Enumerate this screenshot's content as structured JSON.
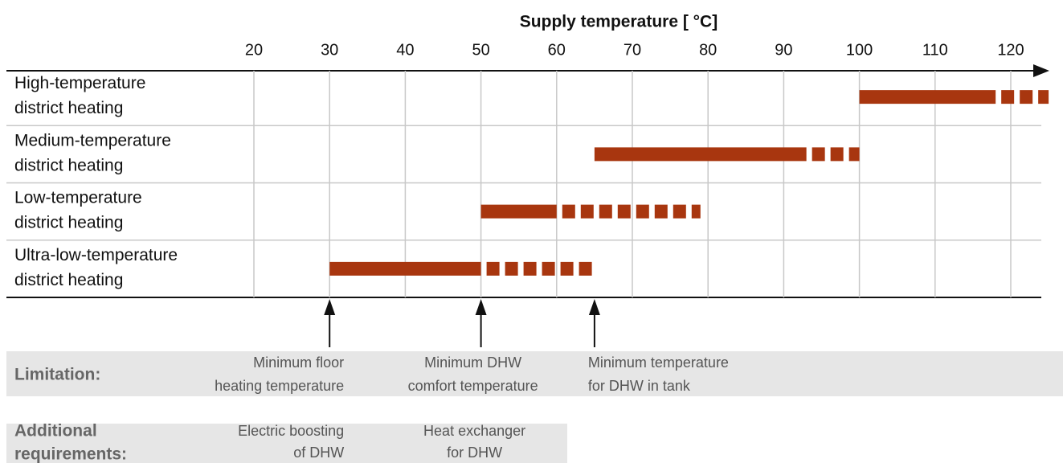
{
  "chart_data": {
    "type": "range",
    "title": "Supply temperature [ °C]",
    "xlim": [
      20,
      120
    ],
    "xticks": [
      20,
      30,
      40,
      50,
      60,
      70,
      80,
      90,
      100,
      110,
      120
    ],
    "grid": true,
    "color": "#a8360f",
    "categories": [
      [
        "High-temperature",
        "district heating"
      ],
      [
        "Medium-temperature",
        "district heating"
      ],
      [
        "Low-temperature",
        "district heating"
      ],
      [
        "Ultra-low-temperature",
        "district heating"
      ]
    ],
    "ranges": [
      {
        "solid": [
          100,
          118
        ],
        "dashed": [
          118,
          125
        ]
      },
      {
        "solid": [
          65,
          93
        ],
        "dashed": [
          93,
          100
        ]
      },
      {
        "solid": [
          50,
          60
        ],
        "dashed": [
          60,
          79
        ]
      },
      {
        "solid": [
          30,
          50
        ],
        "dashed": [
          50,
          65
        ]
      }
    ],
    "limitation_label": "Limitation:",
    "limitations": [
      {
        "x": 30,
        "label": [
          "Minimum floor",
          "heating temperature"
        ]
      },
      {
        "x": 50,
        "label": [
          "Minimum DHW",
          "comfort temperature"
        ]
      },
      {
        "x": 65,
        "label": [
          "Minimum temperature",
          "for DHW in tank"
        ]
      }
    ],
    "requirements_label": [
      "Additional",
      "requirements:"
    ],
    "requirements": [
      {
        "x": 30,
        "label": [
          "Electric boosting",
          "of DHW"
        ]
      },
      {
        "x": 50,
        "label": [
          "Heat exchanger",
          "for DHW"
        ]
      }
    ]
  }
}
